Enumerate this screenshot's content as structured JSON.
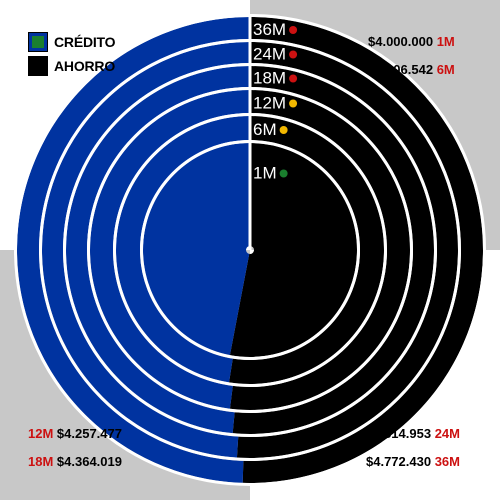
{
  "legend": [
    {
      "label": "CRÉDITO",
      "color": "#0033a0",
      "marker_color": "#1a7f2e"
    },
    {
      "label": "AHORRO",
      "color": "#000000"
    }
  ],
  "annotations": {
    "top_right": [
      {
        "value": "$4.000.000",
        "term": "1M"
      },
      {
        "value": "$4.106.542",
        "term": "6M"
      }
    ],
    "bottom_left": [
      {
        "term": "12M",
        "value": "$4.257.477"
      },
      {
        "term": "18M",
        "value": "$4.364.019"
      }
    ],
    "bottom_right": [
      {
        "value": "$4.514.953",
        "term": "24M"
      },
      {
        "value": "$4.772.430",
        "term": "36M"
      }
    ]
  },
  "colors": {
    "credito": "#0033a0",
    "ahorro": "#000000",
    "term_red": "#cc1111"
  },
  "chart_data": {
    "type": "pie",
    "subtype": "concentric-rings",
    "series": [
      {
        "name": "1M",
        "credito_share": 0.47,
        "ahorro_share": 0.53,
        "dot_color": "#1a7f2e"
      },
      {
        "name": "6M",
        "credito_share": 0.475,
        "ahorro_share": 0.525,
        "dot_color": "#f2b800"
      },
      {
        "name": "12M",
        "credito_share": 0.48,
        "ahorro_share": 0.52,
        "dot_color": "#f2b800"
      },
      {
        "name": "18M",
        "credito_share": 0.485,
        "ahorro_share": 0.515,
        "dot_color": "#cc1111"
      },
      {
        "name": "24M",
        "credito_share": 0.49,
        "ahorro_share": 0.51,
        "dot_color": "#cc1111"
      },
      {
        "name": "36M",
        "credito_share": 0.495,
        "ahorro_share": 0.505,
        "dot_color": "#cc1111"
      }
    ]
  }
}
